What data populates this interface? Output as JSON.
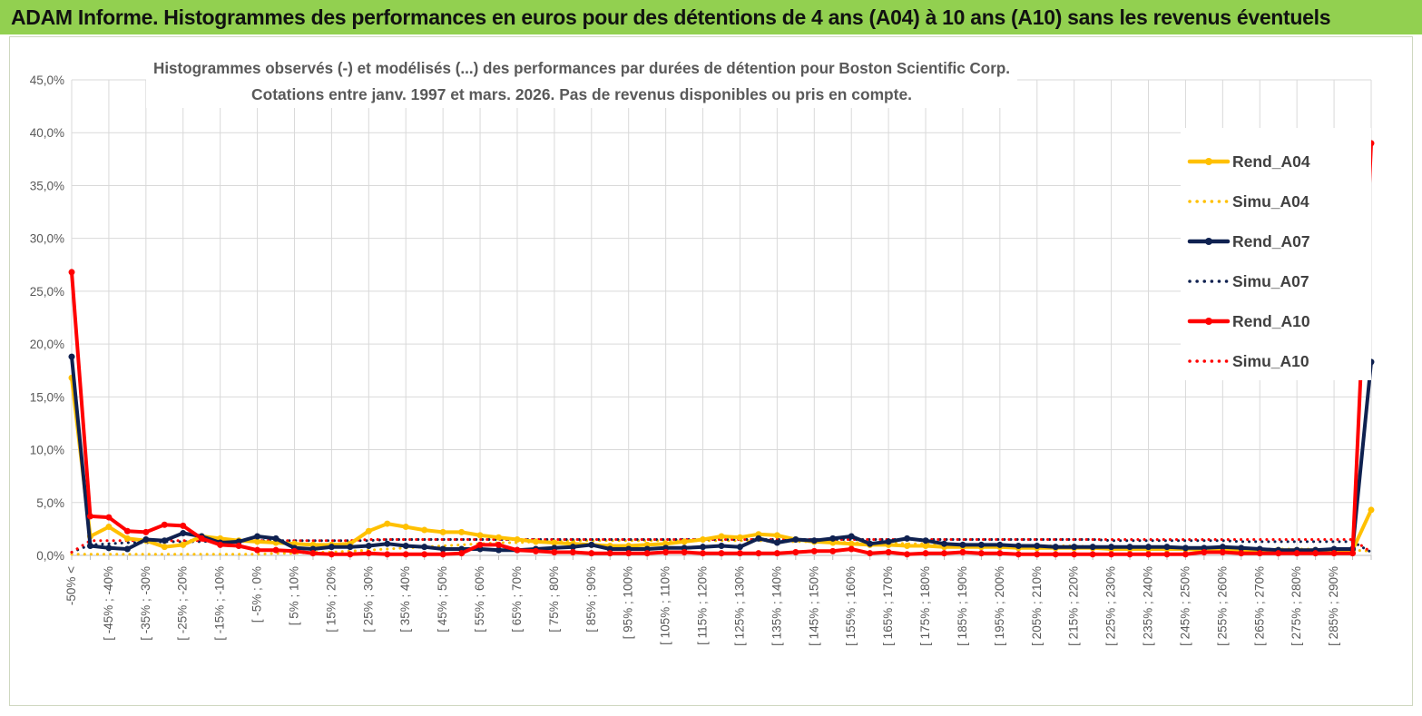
{
  "header": {
    "title": "ADAM Informe. Histogrammes des performances en euros pour des détentions de 4 ans (A04) à 10 ans (A10) sans les revenus éventuels"
  },
  "colors": {
    "header_bg": "#92D050",
    "a04": "#FFC000",
    "a07": "#0F2150",
    "a10": "#FF0000",
    "grid": "#d9d9d9",
    "axis_text": "#595959"
  },
  "chart_data": {
    "type": "line",
    "title": "Histogrammes observés (-) et modélisés (...) des performances par durées de détention pour Boston Scientific Corp.",
    "subtitle": "Cotations entre janv. 1997 et mars.  2026.  Pas de revenus disponibles ou pris en compte.",
    "xlabel": "",
    "ylabel": "",
    "ylim": [
      0,
      45
    ],
    "y_ticks": [
      "0,0%",
      "5,0%",
      "10,0%",
      "15,0%",
      "20,0%",
      "25,0%",
      "30,0%",
      "35,0%",
      "40,0%",
      "45,0%"
    ],
    "legend_position": "right",
    "categories": [
      "-50% <",
      "[ -50% ; -45%",
      "[ -45% ; -40%",
      "[ -40% ; -35%",
      "[ -35% ; -30%",
      "[ -30% ; -25%",
      "[ -25% ; -20%",
      "[ -20% ; -15%",
      "[ -15% ; -10%",
      "[ -10% ; -5%",
      "[ -5% ; 0%",
      "[ 0% ; 5%",
      "[ 5% ; 10%",
      "[ 10% ; 15%",
      "[ 15% ; 20%",
      "[ 20% ; 25%",
      "[ 25% ; 30%",
      "[ 30% ; 35%",
      "[ 35% ; 40%",
      "[ 40% ; 45%",
      "[ 45% ; 50%",
      "[ 50% ; 55%",
      "[ 55% ; 60%",
      "[ 60% ; 65%",
      "[ 65% ; 70%",
      "[ 70% ; 75%",
      "[ 75% ; 80%",
      "[ 80% ; 85%",
      "[ 85% ; 90%",
      "[ 90% ; 95%",
      "[ 95% ; 100%",
      "[ 100% ; 105%",
      "[ 105% ; 110%",
      "[ 110% ; 115%",
      "[ 115% ; 120%",
      "[ 120% ; 125%",
      "[ 125% ; 130%",
      "[ 130% ; 135%",
      "[ 135% ; 140%",
      "[ 140% ; 145%",
      "[ 145% ; 150%",
      "[ 150% ; 155%",
      "[ 155% ; 160%",
      "[ 160% ; 165%",
      "[ 165% ; 170%",
      "[ 170% ; 175%",
      "[ 175% ; 180%",
      "[ 180% ; 185%",
      "[ 185% ; 190%",
      "[ 190% ; 195%",
      "[ 195% ; 200%",
      "[ 200% ; 205%",
      "[ 205% ; 210%",
      "[ 210% ; 215%",
      "[ 215% ; 220%",
      "[ 220% ; 225%",
      "[ 225% ; 230%",
      "[ 230% ; 235%",
      "[ 235% ; 240%",
      "[ 240% ; 245%",
      "[ 245% ; 250%",
      "[ 250% ; 255%",
      "[ 255% ; 260%",
      "[ 260% ; 265%",
      "[ 265% ; 270%",
      "[ 270% ; 275%",
      "[ 275% ; 280%",
      "[ 280% ; 285%",
      "[ 285% ; 290%",
      "[ 290% ; 295%",
      "> 295%"
    ],
    "visible_tick_labels": [
      "-50% <",
      "[ -45% ; -40%",
      "[ -35% ; -30%",
      "[ -25% ; -20%",
      "[ -15% ; -10%",
      "[ -5% ; 0%",
      "[ 5% ; 10%",
      "[ 15% ; 20%",
      "[ 25% ; 30%",
      "[ 35% ; 40%",
      "[ 45% ; 50%",
      "[ 55% ; 60%",
      "[ 65% ; 70%",
      "[ 75% ; 80%",
      "[ 85% ; 90%",
      "[ 95% ; 100%",
      "[ 105% ; 110%",
      "[ 115% ; 120%",
      "[ 125% ; 130%",
      "[ 135% ; 140%",
      "[ 145% ; 150%",
      "[ 155% ; 160%",
      "[ 165% ; 170%",
      "[ 175% ; 180%",
      "[ 185% ; 190%",
      "[ 195% ; 200%",
      "[ 205% ; 210%",
      "[ 215% ; 220%",
      "[ 225% ; 230%",
      "[ 235% ; 240%",
      "[ 245% ; 250%",
      "[ 255% ; 260%",
      "[ 265% ; 270%",
      "[ 275% ; 280%",
      "[ 285% ; 290%"
    ],
    "series": [
      {
        "name": "Rend_A04",
        "style": "solid",
        "color": "#FFC000",
        "values": [
          16.8,
          1.8,
          2.7,
          1.6,
          1.4,
          0.8,
          1.0,
          1.8,
          1.6,
          1.4,
          1.3,
          1.2,
          1.1,
          1.0,
          1.0,
          1.1,
          2.3,
          3.0,
          2.7,
          2.4,
          2.2,
          2.2,
          1.9,
          1.7,
          1.5,
          1.3,
          1.2,
          1.1,
          1.0,
          0.9,
          0.9,
          1.0,
          1.1,
          1.3,
          1.5,
          1.8,
          1.7,
          2.0,
          1.9,
          1.5,
          1.3,
          1.2,
          1.1,
          1.0,
          1.0,
          0.9,
          0.9,
          0.8,
          0.8,
          0.8,
          0.8,
          0.7,
          0.7,
          0.7,
          0.7,
          0.7,
          0.6,
          0.6,
          0.6,
          0.6,
          0.6,
          0.5,
          0.5,
          0.5,
          0.5,
          0.5,
          0.5,
          0.5,
          0.5,
          0.5,
          4.3
        ]
      },
      {
        "name": "Simu_A04",
        "style": "dotted",
        "color": "#FFC000",
        "values": [
          0.1,
          0.1,
          0.1,
          0.1,
          0.1,
          0.1,
          0.1,
          0.1,
          0.1,
          0.1,
          0.1,
          0.2,
          0.2,
          0.3,
          0.3,
          0.4,
          0.5,
          0.6,
          0.7,
          0.8,
          0.9,
          1.0,
          1.1,
          1.2,
          1.2,
          1.3,
          1.3,
          1.4,
          1.4,
          1.4,
          1.4,
          1.4,
          1.4,
          1.4,
          1.4,
          1.4,
          1.4,
          1.4,
          1.3,
          1.3,
          1.3,
          1.3,
          1.2,
          1.2,
          1.2,
          1.1,
          1.1,
          1.1,
          1.0,
          1.0,
          1.0,
          0.9,
          0.9,
          0.9,
          0.9,
          0.8,
          0.8,
          0.8,
          0.8,
          0.7,
          0.7,
          0.7,
          0.7,
          0.6,
          0.6,
          0.6,
          0.6,
          0.6,
          0.5,
          0.5,
          0.4
        ]
      },
      {
        "name": "Rend_A07",
        "style": "solid",
        "color": "#0F2150",
        "values": [
          18.8,
          0.9,
          0.7,
          0.6,
          1.5,
          1.4,
          2.1,
          1.8,
          1.2,
          1.3,
          1.8,
          1.6,
          0.7,
          0.6,
          0.8,
          0.8,
          0.9,
          1.1,
          0.9,
          0.8,
          0.6,
          0.6,
          0.6,
          0.5,
          0.5,
          0.6,
          0.7,
          0.8,
          1.0,
          0.6,
          0.6,
          0.6,
          0.7,
          0.7,
          0.8,
          0.9,
          0.8,
          1.6,
          1.2,
          1.5,
          1.4,
          1.6,
          1.8,
          1.1,
          1.3,
          1.6,
          1.4,
          1.1,
          1.0,
          1.0,
          1.0,
          0.9,
          0.9,
          0.8,
          0.8,
          0.8,
          0.8,
          0.8,
          0.8,
          0.8,
          0.7,
          0.7,
          0.8,
          0.7,
          0.6,
          0.5,
          0.5,
          0.5,
          0.6,
          0.6,
          18.3
        ]
      },
      {
        "name": "Simu_A07",
        "style": "dotted",
        "color": "#0F2150",
        "values": [
          0.3,
          1.0,
          1.1,
          1.2,
          1.2,
          1.3,
          1.3,
          1.3,
          1.4,
          1.4,
          1.4,
          1.4,
          1.4,
          1.4,
          1.4,
          1.4,
          1.4,
          1.5,
          1.5,
          1.5,
          1.5,
          1.5,
          1.5,
          1.5,
          1.5,
          1.5,
          1.5,
          1.5,
          1.5,
          1.5,
          1.5,
          1.5,
          1.5,
          1.5,
          1.5,
          1.5,
          1.5,
          1.5,
          1.5,
          1.5,
          1.5,
          1.5,
          1.5,
          1.5,
          1.5,
          1.5,
          1.5,
          1.5,
          1.5,
          1.5,
          1.5,
          1.5,
          1.5,
          1.5,
          1.5,
          1.5,
          1.4,
          1.4,
          1.4,
          1.4,
          1.4,
          1.4,
          1.4,
          1.3,
          1.3,
          1.3,
          1.3,
          1.3,
          1.3,
          1.3,
          0.3
        ]
      },
      {
        "name": "Rend_A10",
        "style": "solid",
        "color": "#FF0000",
        "values": [
          26.8,
          3.7,
          3.6,
          2.3,
          2.2,
          2.9,
          2.8,
          1.6,
          1.0,
          0.9,
          0.5,
          0.5,
          0.4,
          0.2,
          0.1,
          0.1,
          0.2,
          0.1,
          0.1,
          0.1,
          0.1,
          0.2,
          1.0,
          1.0,
          0.5,
          0.4,
          0.3,
          0.3,
          0.2,
          0.2,
          0.2,
          0.2,
          0.3,
          0.3,
          0.2,
          0.2,
          0.2,
          0.2,
          0.2,
          0.3,
          0.4,
          0.4,
          0.6,
          0.2,
          0.3,
          0.1,
          0.2,
          0.2,
          0.3,
          0.2,
          0.2,
          0.1,
          0.1,
          0.1,
          0.1,
          0.1,
          0.1,
          0.1,
          0.1,
          0.1,
          0.1,
          0.3,
          0.3,
          0.2,
          0.2,
          0.2,
          0.2,
          0.2,
          0.2,
          0.2,
          39.0
        ]
      },
      {
        "name": "Simu_A10",
        "style": "dotted",
        "color": "#FF0000",
        "values": [
          0.3,
          1.4,
          1.4,
          1.4,
          1.4,
          1.4,
          1.4,
          1.4,
          1.4,
          1.4,
          1.4,
          1.4,
          1.4,
          1.4,
          1.4,
          1.4,
          1.5,
          1.5,
          1.5,
          1.5,
          1.5,
          1.5,
          1.5,
          1.5,
          1.5,
          1.5,
          1.5,
          1.5,
          1.5,
          1.5,
          1.5,
          1.5,
          1.5,
          1.5,
          1.5,
          1.5,
          1.5,
          1.5,
          1.5,
          1.5,
          1.5,
          1.5,
          1.5,
          1.5,
          1.5,
          1.5,
          1.5,
          1.5,
          1.5,
          1.5,
          1.5,
          1.5,
          1.5,
          1.5,
          1.5,
          1.5,
          1.5,
          1.5,
          1.5,
          1.5,
          1.5,
          1.5,
          1.5,
          1.5,
          1.5,
          1.5,
          1.5,
          1.5,
          1.5,
          1.5,
          0.3
        ]
      }
    ]
  }
}
